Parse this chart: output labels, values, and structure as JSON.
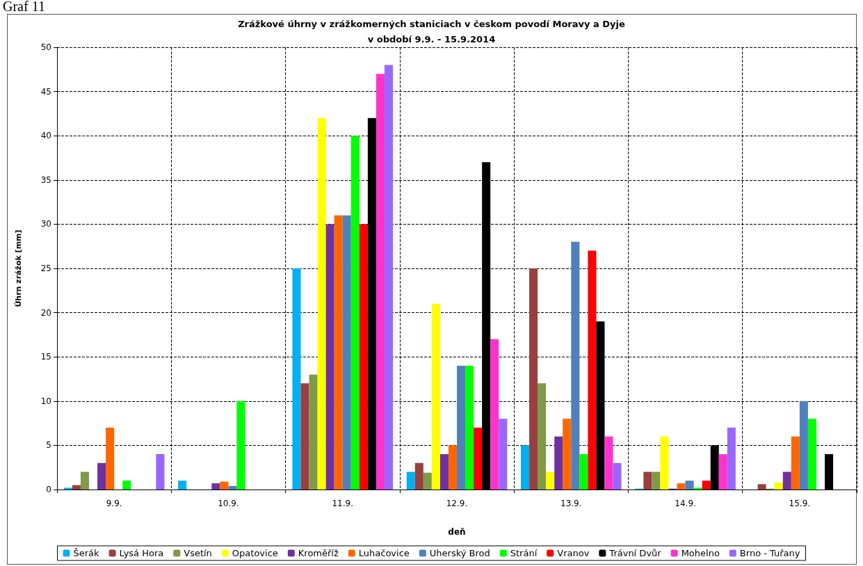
{
  "chart_data": {
    "type": "bar",
    "title": "Zrážkové úhrny v zrážkomerných staniciach v českom povodí Moravy a Dyje\nv období 9.9. - 15.9.2014",
    "xlabel": "deň",
    "ylabel": "Úhrn zrážok [mm]",
    "annotations": [
      "Graf 11"
    ],
    "categories": [
      "9.9.",
      "10.9.",
      "11.9.",
      "12.9.",
      "13.9.",
      "14.9.",
      "15.9."
    ],
    "series": [
      {
        "name": "Šerák",
        "color": "#00b0f0",
        "values": [
          0.2,
          1,
          25,
          2,
          5,
          0.1,
          0
        ]
      },
      {
        "name": "Lysá Hora",
        "color": "#993f3f",
        "values": [
          0.5,
          0,
          12,
          3,
          25,
          2,
          0.6
        ]
      },
      {
        "name": "Vsetín",
        "color": "#7f9a48",
        "values": [
          2,
          0,
          13,
          1.9,
          12,
          2,
          0.1
        ]
      },
      {
        "name": "Opatovice",
        "color": "#ffff00",
        "values": [
          0,
          0,
          42,
          21,
          2,
          6,
          0.8
        ]
      },
      {
        "name": "Kroměříž",
        "color": "#7030a0",
        "values": [
          3,
          0.7,
          30,
          4,
          6,
          0.1,
          2
        ]
      },
      {
        "name": "Luhačovice",
        "color": "#ff6600",
        "values": [
          7,
          0.9,
          31,
          5,
          8,
          0.7,
          6
        ]
      },
      {
        "name": "Uherský Brod",
        "color": "#4f81bd",
        "values": [
          0,
          0.4,
          31,
          14,
          28,
          1,
          10
        ]
      },
      {
        "name": "Strání",
        "color": "#00ff00",
        "values": [
          1,
          10,
          40,
          14,
          4,
          0.2,
          8
        ]
      },
      {
        "name": "Vranov",
        "color": "#ff0000",
        "values": [
          0,
          0,
          30,
          7,
          27,
          1,
          0
        ]
      },
      {
        "name": "Trávní Dvůr",
        "color": "#000000",
        "values": [
          0,
          0,
          42,
          37,
          19,
          5,
          4
        ]
      },
      {
        "name": "Mohelno",
        "color": "#ff33cc",
        "values": [
          0,
          0,
          47,
          17,
          6,
          4,
          0
        ]
      },
      {
        "name": "Brno - Tuřany",
        "color": "#9966ff",
        "values": [
          4,
          0,
          48,
          8,
          3,
          7,
          0
        ]
      }
    ],
    "ylim": [
      0,
      50
    ],
    "yticks": [
      0,
      5,
      10,
      15,
      20,
      25,
      30,
      35,
      40,
      45,
      50
    ],
    "grid": true,
    "legend": "bottom"
  }
}
